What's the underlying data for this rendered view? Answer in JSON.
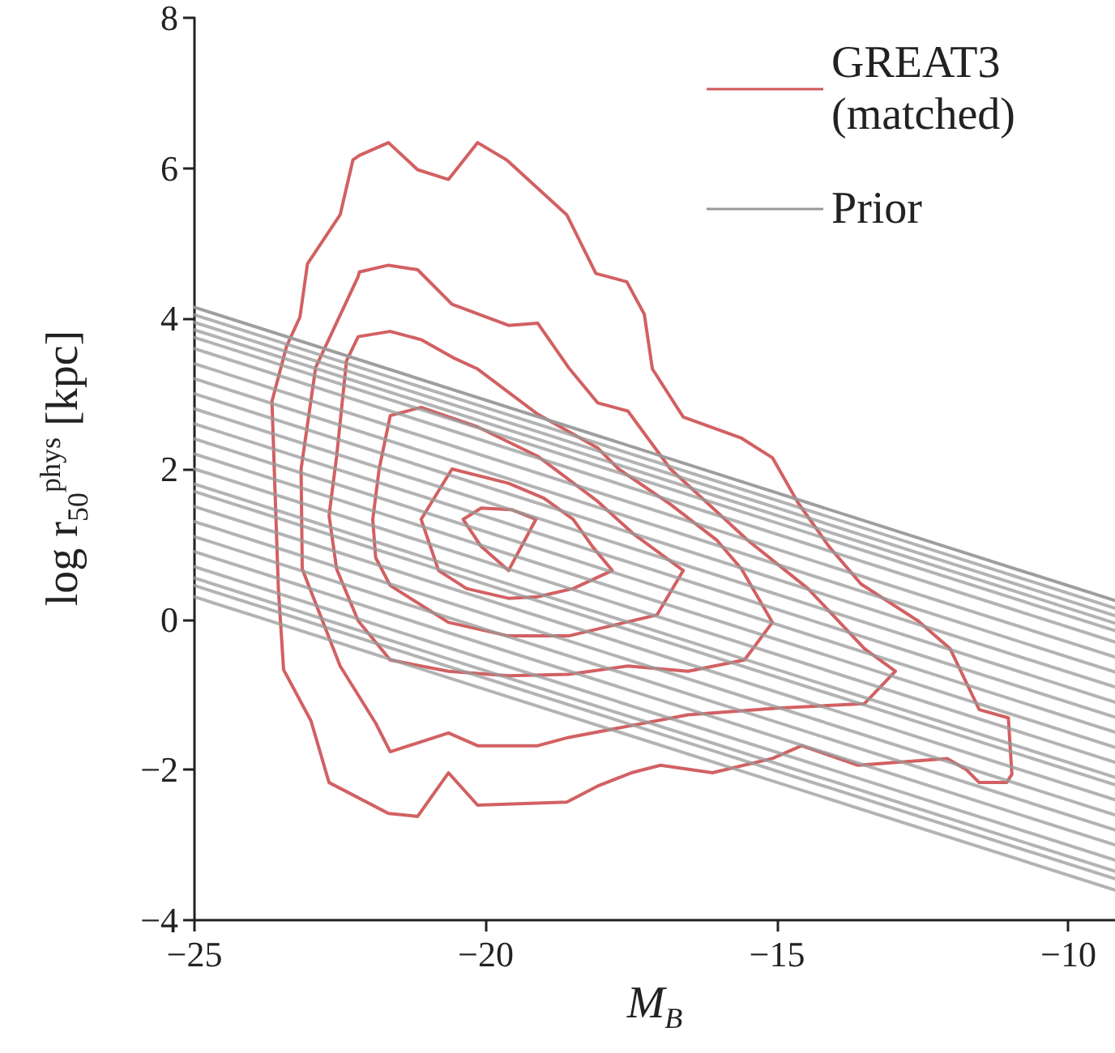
{
  "chart_data": {
    "type": "line",
    "xlabel": "M$_{B}$",
    "ylabel": "log r$_{50}$$^{phys}$ [kpc]",
    "xlim": [
      -25,
      -9.2
    ],
    "xticks": [
      -25,
      -20,
      -15,
      -10
    ],
    "ylim": [
      -4,
      8
    ],
    "yticks": [
      -4,
      -2,
      0,
      2,
      4,
      6,
      8
    ],
    "grid": false,
    "legend": "top right",
    "marker": "none",
    "line_style": "solid",
    "series": [
      {
        "name": "GREAT3 (matched)",
        "color": "#d0575a",
        "x": [
          -23.67,
          -23.42,
          -23.19,
          -23.06,
          -22.5,
          -22.28,
          -22.17,
          -21.67,
          -21.17,
          -20.64,
          -20.14,
          -19.64,
          -18.61,
          -18.11,
          -17.58,
          -17.28,
          -17.14,
          -16.61,
          -15.61,
          -15.08,
          -14.64,
          -14.11,
          -13.56,
          -12.58,
          -12.03,
          -11.53,
          -11.03,
          -10.97,
          null,
          -23.67,
          -23.56,
          -23.47,
          -23.0,
          -22.69,
          -21.67,
          -21.17,
          -20.64,
          -20.14,
          -18.61,
          -18.06,
          -17.5,
          -17.0,
          -16.11,
          -15.08,
          -14.58,
          -13.61,
          -12.08,
          -11.75,
          -11.53,
          -11.06,
          -10.97
        ],
        "values": [
          2.9,
          3.63,
          4.02,
          4.73,
          5.38,
          6.11,
          6.17,
          6.34,
          5.98,
          5.85,
          6.34,
          6.11,
          5.38,
          4.6,
          4.49,
          4.06,
          3.33,
          2.69,
          2.41,
          2.15,
          1.55,
          0.97,
          0.47,
          -0.02,
          -0.39,
          -1.2,
          -1.31,
          -2.06,
          null,
          2.9,
          0.41,
          -0.67,
          -1.35,
          -2.17,
          -2.58,
          -2.62,
          -2.04,
          -2.47,
          -2.43,
          -2.21,
          -2.04,
          -1.94,
          -2.04,
          -1.85,
          -1.68,
          -1.94,
          -1.85,
          -2.0,
          -2.17,
          -2.17,
          -2.06
        ]
      },
      {
        "color": "#d0575a",
        "x": [
          -23.17,
          -22.92,
          -22.19,
          -22.17,
          -21.67,
          -21.17,
          -20.58,
          -19.61,
          -19.11,
          -18.58,
          -18.08,
          -17.56,
          -16.83,
          -15.5,
          -14.47,
          -13.5,
          -12.97,
          null,
          -23.17,
          -23.15,
          -22.5,
          -21.89,
          -21.64,
          -20.64,
          -20.14,
          -19.11,
          -18.58,
          -16.53,
          -15.0,
          -13.5,
          -12.97
        ],
        "values": [
          2.0,
          3.35,
          4.56,
          4.62,
          4.71,
          4.65,
          4.19,
          3.91,
          3.94,
          3.35,
          2.88,
          2.77,
          2.0,
          1.05,
          0.41,
          -0.39,
          -0.69,
          null,
          2.0,
          0.67,
          -0.62,
          -1.38,
          -1.76,
          -1.51,
          -1.68,
          -1.68,
          -1.57,
          -1.27,
          -1.18,
          -1.12,
          -0.69
        ]
      },
      {
        "color": "#d0575a",
        "x": [
          -22.69,
          -22.56,
          -22.39,
          -22.19,
          -21.64,
          -21.11,
          -20.56,
          -20.14,
          -19.11,
          -18.08,
          -17.72,
          -16.83,
          -16.03,
          -15.61,
          -15.08,
          null,
          -22.69,
          -22.56,
          -22.19,
          -21.64,
          -20.64,
          -19.61,
          -18.58,
          -17.56,
          -16.53,
          -15.56,
          -15.08
        ],
        "values": [
          1.38,
          2.17,
          3.44,
          3.76,
          3.83,
          3.72,
          3.48,
          3.33,
          2.73,
          2.28,
          2.0,
          1.53,
          1.05,
          0.67,
          -0.04,
          null,
          1.38,
          0.67,
          -0.02,
          -0.54,
          -0.69,
          -0.75,
          -0.73,
          -0.62,
          -0.69,
          -0.54,
          -0.04
        ]
      },
      {
        "color": "#d0575a",
        "x": [
          -21.94,
          -21.83,
          -21.64,
          -21.11,
          -20.14,
          -19.11,
          -18.08,
          -17.47,
          -16.61,
          null,
          -21.94,
          -21.89,
          -21.64,
          -20.64,
          -19.61,
          -18.58,
          -17.06,
          -16.61
        ],
        "values": [
          1.33,
          2.0,
          2.71,
          2.82,
          2.56,
          2.17,
          1.57,
          1.14,
          0.65,
          null,
          1.33,
          0.82,
          0.45,
          -0.04,
          -0.22,
          -0.22,
          0.06,
          0.65
        ]
      },
      {
        "color": "#d0575a",
        "x": [
          -21.11,
          -20.58,
          -19.61,
          -19.0,
          -18.5,
          -18.17,
          -17.83,
          null,
          -21.11,
          -20.81,
          -20.33,
          -19.61,
          -19.11,
          -18.5,
          -17.83
        ],
        "values": [
          1.33,
          2.0,
          1.81,
          1.61,
          1.33,
          0.97,
          0.65,
          null,
          1.33,
          0.65,
          0.41,
          0.28,
          0.3,
          0.41,
          0.65
        ]
      },
      {
        "color": "#d0575a",
        "x": [
          -20.39,
          -20.08,
          -19.56,
          -19.14,
          null,
          -20.39,
          -20.08,
          -19.61,
          -19.14
        ],
        "values": [
          1.33,
          1.48,
          1.46,
          1.33,
          null,
          1.33,
          0.97,
          0.65,
          1.33
        ]
      },
      {
        "name": "Prior",
        "color": "#999999",
        "x": [
          -25,
          -9.2
        ],
        "values": [
          4.15,
          0.25
        ]
      },
      {
        "color": "#999999",
        "x": [
          -25,
          -9.2
        ],
        "values": [
          4.05,
          0.15
        ]
      },
      {
        "color": "#999999",
        "x": [
          -25,
          -9.2
        ],
        "values": [
          3.95,
          0.05
        ]
      },
      {
        "color": "#999999",
        "x": [
          -25,
          -9.2
        ],
        "values": [
          3.85,
          -0.05
        ]
      },
      {
        "color": "#999999",
        "x": [
          -25,
          -9.2
        ],
        "values": [
          3.75,
          -0.15
        ]
      },
      {
        "color": "#999999",
        "x": [
          -25,
          -9.2
        ],
        "values": [
          3.6,
          -0.3
        ]
      },
      {
        "color": "#999999",
        "x": [
          -25,
          -9.2
        ],
        "values": [
          3.4,
          -0.5
        ]
      },
      {
        "color": "#999999",
        "x": [
          -25,
          -9.2
        ],
        "values": [
          3.2,
          -0.7
        ]
      },
      {
        "color": "#999999",
        "x": [
          -25,
          -9.2
        ],
        "values": [
          3.0,
          -0.9
        ]
      },
      {
        "color": "#999999",
        "x": [
          -25,
          -9.2
        ],
        "values": [
          2.8,
          -1.1
        ]
      },
      {
        "color": "#999999",
        "x": [
          -25,
          -9.2
        ],
        "values": [
          2.6,
          -1.3
        ]
      },
      {
        "color": "#999999",
        "x": [
          -25,
          -9.2
        ],
        "values": [
          2.4,
          -1.5
        ]
      },
      {
        "color": "#999999",
        "x": [
          -25,
          -9.2
        ],
        "values": [
          2.2,
          -1.7
        ]
      },
      {
        "color": "#999999",
        "x": [
          -25,
          -9.2
        ],
        "values": [
          2.0,
          -1.9
        ]
      },
      {
        "color": "#999999",
        "x": [
          -25,
          -9.2
        ],
        "values": [
          1.8,
          -2.1
        ]
      },
      {
        "color": "#999999",
        "x": [
          -25,
          -9.2
        ],
        "values": [
          1.7,
          -2.2
        ]
      },
      {
        "color": "#999999",
        "x": [
          -25,
          -9.2
        ],
        "values": [
          1.5,
          -2.4
        ]
      },
      {
        "color": "#999999",
        "x": [
          -25,
          -9.2
        ],
        "values": [
          1.3,
          -2.6
        ]
      },
      {
        "color": "#999999",
        "x": [
          -25,
          -9.2
        ],
        "values": [
          1.1,
          -2.8
        ]
      },
      {
        "color": "#999999",
        "x": [
          -25,
          -9.2
        ],
        "values": [
          0.9,
          -3.0
        ]
      },
      {
        "color": "#999999",
        "x": [
          -25,
          -9.2
        ],
        "values": [
          0.7,
          -3.2
        ]
      },
      {
        "color": "#999999",
        "x": [
          -25,
          -9.2
        ],
        "values": [
          0.55,
          -3.35
        ]
      },
      {
        "color": "#999999",
        "x": [
          -25,
          -9.2
        ],
        "values": [
          0.45,
          -3.45
        ]
      },
      {
        "color": "#999999",
        "x": [
          -25,
          -9.2
        ],
        "values": [
          0.3,
          -3.6
        ]
      }
    ]
  }
}
